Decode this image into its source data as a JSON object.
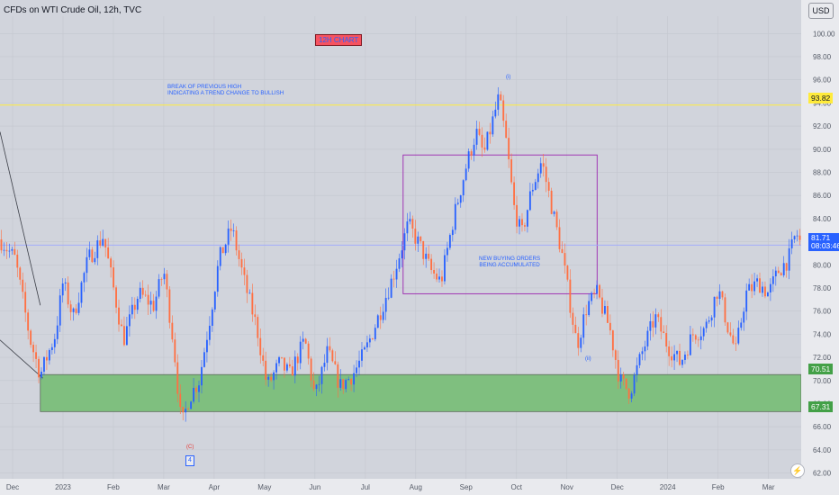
{
  "header": {
    "title": "CFDs on WTI Crude Oil, 12h, TVC",
    "currency": "USD"
  },
  "annotations": {
    "chart_label": "12H CHART",
    "break_note_1": "BREAK OF PREVIOUS HIGH",
    "break_note_2": "INDICATING A TREND CHANGE TO BULLISH",
    "buying_note_1": "NEW BUYING ORDERS",
    "buying_note_2": "BEING ACCUMULATED",
    "wave_i": "(i)",
    "wave_ii": "(ii)",
    "wave_c": "(C)",
    "wave_4": "4"
  },
  "price_tags": {
    "level_high": "93.82",
    "current_price": "81.71",
    "countdown": "08:03:46",
    "zone_top": "70.51",
    "zone_bottom": "67.31"
  },
  "colors": {
    "background": "#d1d4dc",
    "up": "#2962ff",
    "down": "#ff7043",
    "zone": "#7fbf7f",
    "box": "#9c27b0",
    "level": "#ffeb3b",
    "price_line": "#9ea8ff"
  },
  "chart_data": {
    "type": "candlestick",
    "symbol": "CFDs on WTI Crude Oil",
    "interval": "12h",
    "y_axis": {
      "side": "right",
      "ticks": [
        "100.00",
        "98.00",
        "96.00",
        "94.00",
        "92.00",
        "90.00",
        "88.00",
        "86.00",
        "84.00",
        "82.00",
        "80.00",
        "78.00",
        "76.00",
        "74.00",
        "72.00",
        "70.00",
        "68.00",
        "66.00",
        "64.00",
        "62.00"
      ],
      "range": [
        61.5,
        101.5
      ]
    },
    "x_axis": {
      "labels": [
        "Dec",
        "2023",
        "Feb",
        "Mar",
        "Apr",
        "May",
        "Jun",
        "Jul",
        "Aug",
        "Sep",
        "Oct",
        "Nov",
        "Dec",
        "2024",
        "Feb",
        "Mar"
      ],
      "months": [
        0,
        1,
        2,
        3,
        4,
        5,
        6,
        7,
        8,
        9,
        10,
        11,
        12,
        13,
        14,
        15
      ],
      "range": [
        -0.25,
        15.65
      ]
    },
    "price_path": [
      {
        "t": -0.25,
        "p": 82.2
      },
      {
        "t": 0.05,
        "p": 80.5
      },
      {
        "t": 0.35,
        "p": 73.5
      },
      {
        "t": 0.55,
        "p": 70.5
      },
      {
        "t": 0.85,
        "p": 74.0
      },
      {
        "t": 1.0,
        "p": 78.5
      },
      {
        "t": 1.2,
        "p": 75.5
      },
      {
        "t": 1.5,
        "p": 80.5
      },
      {
        "t": 1.8,
        "p": 82.5
      },
      {
        "t": 2.0,
        "p": 78.0
      },
      {
        "t": 2.2,
        "p": 73.5
      },
      {
        "t": 2.5,
        "p": 77.5
      },
      {
        "t": 2.8,
        "p": 76.5
      },
      {
        "t": 3.0,
        "p": 79.5
      },
      {
        "t": 3.2,
        "p": 73.0
      },
      {
        "t": 3.35,
        "p": 66.0
      },
      {
        "t": 3.5,
        "p": 68.5
      },
      {
        "t": 3.7,
        "p": 70.0
      },
      {
        "t": 3.9,
        "p": 75.0
      },
      {
        "t": 4.1,
        "p": 80.5
      },
      {
        "t": 4.35,
        "p": 83.2
      },
      {
        "t": 4.6,
        "p": 78.5
      },
      {
        "t": 4.85,
        "p": 74.5
      },
      {
        "t": 5.05,
        "p": 69.5
      },
      {
        "t": 5.3,
        "p": 71.5
      },
      {
        "t": 5.5,
        "p": 70.5
      },
      {
        "t": 5.8,
        "p": 73.5
      },
      {
        "t": 6.0,
        "p": 68.5
      },
      {
        "t": 6.25,
        "p": 72.5
      },
      {
        "t": 6.5,
        "p": 69.5
      },
      {
        "t": 6.75,
        "p": 70.5
      },
      {
        "t": 7.0,
        "p": 72.5
      },
      {
        "t": 7.3,
        "p": 76.0
      },
      {
        "t": 7.55,
        "p": 79.0
      },
      {
        "t": 7.85,
        "p": 83.5
      },
      {
        "t": 8.1,
        "p": 81.5
      },
      {
        "t": 8.3,
        "p": 79.5
      },
      {
        "t": 8.5,
        "p": 78.5
      },
      {
        "t": 8.75,
        "p": 84.0
      },
      {
        "t": 9.0,
        "p": 88.5
      },
      {
        "t": 9.2,
        "p": 91.5
      },
      {
        "t": 9.35,
        "p": 89.5
      },
      {
        "t": 9.65,
        "p": 94.5
      },
      {
        "t": 9.8,
        "p": 90.5
      },
      {
        "t": 9.95,
        "p": 85.0
      },
      {
        "t": 10.1,
        "p": 82.5
      },
      {
        "t": 10.3,
        "p": 86.5
      },
      {
        "t": 10.5,
        "p": 89.0
      },
      {
        "t": 10.7,
        "p": 85.0
      },
      {
        "t": 10.9,
        "p": 81.0
      },
      {
        "t": 11.05,
        "p": 77.0
      },
      {
        "t": 11.2,
        "p": 73.0
      },
      {
        "t": 11.4,
        "p": 76.5
      },
      {
        "t": 11.6,
        "p": 77.5
      },
      {
        "t": 11.85,
        "p": 74.5
      },
      {
        "t": 12.05,
        "p": 70.0
      },
      {
        "t": 12.25,
        "p": 69.0
      },
      {
        "t": 12.5,
        "p": 72.5
      },
      {
        "t": 12.75,
        "p": 75.5
      },
      {
        "t": 13.0,
        "p": 73.0
      },
      {
        "t": 13.25,
        "p": 71.5
      },
      {
        "t": 13.5,
        "p": 74.0
      },
      {
        "t": 13.75,
        "p": 74.5
      },
      {
        "t": 14.0,
        "p": 78.0
      },
      {
        "t": 14.2,
        "p": 74.5
      },
      {
        "t": 14.35,
        "p": 72.5
      },
      {
        "t": 14.55,
        "p": 77.5
      },
      {
        "t": 14.8,
        "p": 78.5
      },
      {
        "t": 15.0,
        "p": 77.5
      },
      {
        "t": 15.2,
        "p": 79.5
      },
      {
        "t": 15.4,
        "p": 80.5
      },
      {
        "t": 15.55,
        "p": 82.8
      },
      {
        "t": 15.65,
        "p": 81.71
      }
    ],
    "levels": [
      {
        "name": "break-level",
        "price": 93.82
      },
      {
        "name": "current-price",
        "price": 81.71
      }
    ],
    "zones": [
      {
        "name": "demand-zone",
        "from_month": 0.55,
        "to_month": 15.65,
        "low": 67.31,
        "high": 70.51
      }
    ],
    "boxes": [
      {
        "name": "accumulation-box",
        "from_month": 7.75,
        "to_month": 11.6,
        "low": 77.5,
        "high": 89.5
      }
    ]
  }
}
